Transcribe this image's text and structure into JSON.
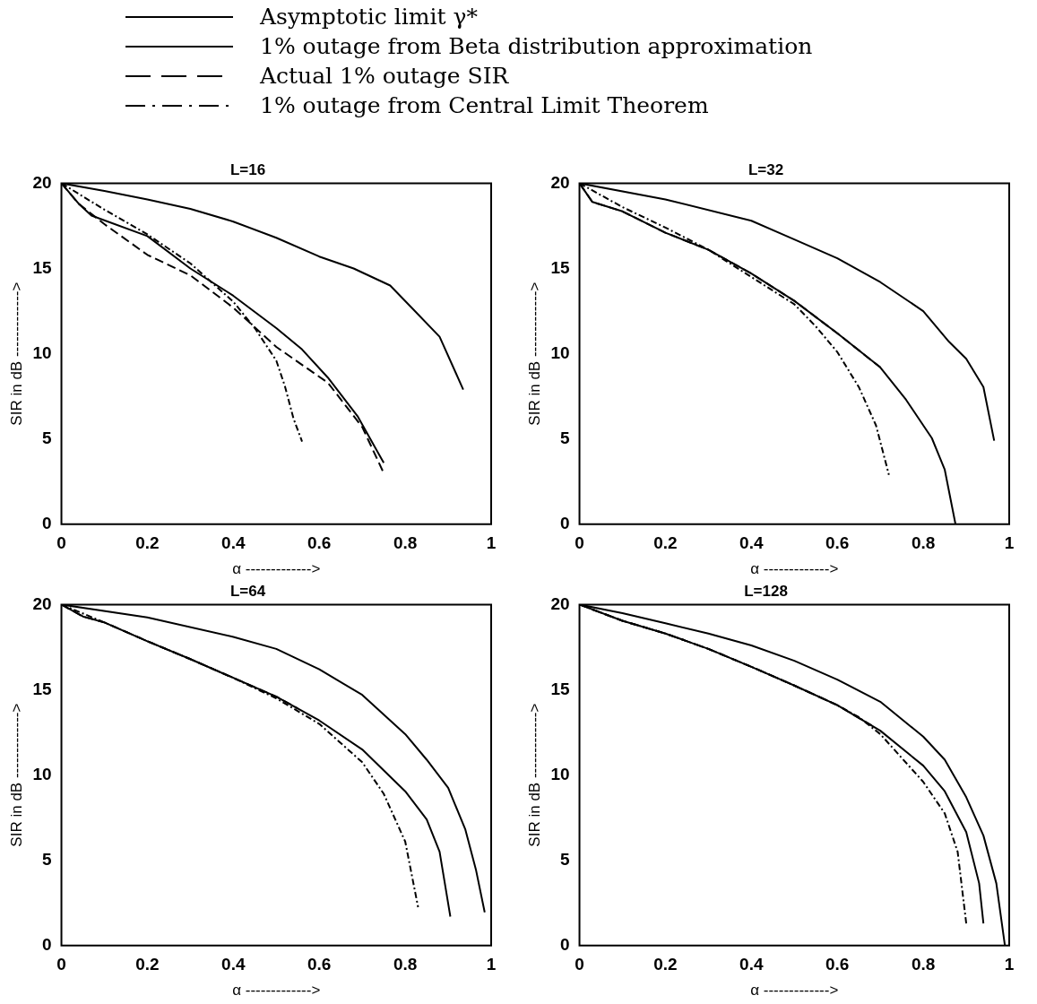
{
  "chart_data": [
    {
      "type": "line",
      "title": "L=16",
      "xlabel": "α ------------->",
      "ylabel": "SIR in dB ------------->",
      "xlim": [
        0,
        1
      ],
      "ylim": [
        0,
        20
      ],
      "xticks": [
        0,
        0.2,
        0.4,
        0.6,
        0.8,
        1
      ],
      "yticks": [
        0,
        5,
        10,
        15,
        20
      ],
      "grid": false,
      "legend": "top",
      "marker": "none",
      "series": [
        {
          "name": "Asymptotic limit γ*",
          "color": "#000000",
          "line_style": "solid",
          "x": [
            0,
            0.1,
            0.2,
            0.3,
            0.4,
            0.5,
            0.6,
            0.68,
            0.765,
            0.815,
            0.88,
            0.935
          ],
          "values": [
            20,
            19.55,
            19.05,
            18.5,
            17.75,
            16.8,
            15.7,
            15,
            14,
            12.7,
            11,
            7.9
          ]
        },
        {
          "name": "1% outage from Beta distribution approximation",
          "color": "#000000",
          "line_style": "solid",
          "x": [
            0,
            0.04,
            0.07,
            0.2,
            0.3,
            0.4,
            0.5,
            0.56,
            0.62,
            0.69,
            0.75
          ],
          "values": [
            20,
            18.8,
            18.1,
            16.9,
            15,
            13.4,
            11.5,
            10.25,
            8.6,
            6.3,
            3.6
          ]
        },
        {
          "name": "Actual 1% outage SIR",
          "color": "#000000",
          "line_style": "dashed",
          "x": [
            0,
            0.04,
            0.1,
            0.2,
            0.3,
            0.4,
            0.5,
            0.62,
            0.7,
            0.75
          ],
          "values": [
            20,
            18.8,
            17.6,
            15.8,
            14.6,
            12.7,
            10.4,
            8.3,
            5.7,
            3
          ]
        },
        {
          "name": "1% outage from Central Limit Theorem",
          "color": "#000000",
          "line_style": "dotted",
          "x": [
            0,
            0.1,
            0.2,
            0.3,
            0.4,
            0.45,
            0.5,
            0.52,
            0.54,
            0.56
          ],
          "values": [
            20,
            18.45,
            17,
            15.3,
            13.05,
            11.5,
            9.6,
            8.1,
            6.2,
            4.85
          ]
        }
      ]
    },
    {
      "type": "line",
      "title": "L=32",
      "xlabel": "α ------------->",
      "ylabel": "SIR in dB ------------->",
      "xlim": [
        0,
        1
      ],
      "ylim": [
        0,
        20
      ],
      "xticks": [
        0,
        0.2,
        0.4,
        0.6,
        0.8,
        1
      ],
      "yticks": [
        0,
        5,
        10,
        15,
        20
      ],
      "grid": false,
      "marker": "none",
      "series": [
        {
          "color": "#000000",
          "line_style": "solid",
          "x": [
            0,
            0.2,
            0.4,
            0.5,
            0.6,
            0.7,
            0.8,
            0.86,
            0.9,
            0.94,
            0.965
          ],
          "values": [
            20,
            19.05,
            17.8,
            16.7,
            15.6,
            14.2,
            12.5,
            10.7,
            9.7,
            8.05,
            4.9
          ]
        },
        {
          "color": "#000000",
          "line_style": "solid",
          "x": [
            0,
            0.03,
            0.1,
            0.2,
            0.3,
            0.4,
            0.5,
            0.6,
            0.7,
            0.76,
            0.82,
            0.85,
            0.875
          ],
          "values": [
            20,
            18.9,
            18.35,
            17.1,
            16.1,
            14.7,
            13.1,
            11.2,
            9.2,
            7.3,
            5.05,
            3.2,
            0
          ]
        },
        {
          "color": "#000000",
          "line_style": "dashed",
          "x": [
            0,
            0.03,
            0.1,
            0.2,
            0.3,
            0.4,
            0.5,
            0.6,
            0.7
          ],
          "values": [
            20,
            18.9,
            18.35,
            17.1,
            16.1,
            14.7,
            13.1,
            11.2,
            9.2
          ]
        },
        {
          "color": "#000000",
          "line_style": "dotted",
          "x": [
            0,
            0.1,
            0.2,
            0.3,
            0.4,
            0.5,
            0.55,
            0.6,
            0.65,
            0.69,
            0.72
          ],
          "values": [
            20,
            18.6,
            17.4,
            16.1,
            14.5,
            12.9,
            11.6,
            10.1,
            8.05,
            5.8,
            2.9
          ]
        }
      ]
    },
    {
      "type": "line",
      "title": "L=64",
      "xlabel": "α ------------->",
      "ylabel": "SIR in dB ------------->",
      "xlim": [
        0,
        1
      ],
      "ylim": [
        0,
        20
      ],
      "xticks": [
        0,
        0.2,
        0.4,
        0.6,
        0.8,
        1
      ],
      "yticks": [
        0,
        5,
        10,
        15,
        20
      ],
      "grid": false,
      "marker": "none",
      "series": [
        {
          "color": "#000000",
          "line_style": "solid",
          "x": [
            0,
            0.2,
            0.4,
            0.5,
            0.6,
            0.7,
            0.8,
            0.85,
            0.9,
            0.94,
            0.965,
            0.985
          ],
          "values": [
            20,
            19.25,
            18.1,
            17.4,
            16.2,
            14.7,
            12.4,
            10.9,
            9.25,
            6.8,
            4.4,
            1.95
          ]
        },
        {
          "color": "#000000",
          "line_style": "solid",
          "x": [
            0,
            0.05,
            0.1,
            0.2,
            0.3,
            0.4,
            0.5,
            0.6,
            0.7,
            0.8,
            0.85,
            0.88,
            0.905
          ],
          "values": [
            20,
            19.3,
            18.95,
            17.85,
            16.8,
            15.7,
            14.6,
            13.2,
            11.5,
            9.05,
            7.4,
            5.5,
            1.7
          ]
        },
        {
          "color": "#000000",
          "line_style": "dashed",
          "x": [
            0,
            0.05,
            0.1,
            0.2,
            0.3,
            0.4,
            0.5,
            0.55
          ],
          "values": [
            20,
            19.3,
            18.95,
            17.85,
            16.8,
            15.7,
            14.6,
            13.9
          ]
        },
        {
          "color": "#000000",
          "line_style": "dotted",
          "x": [
            0,
            0.1,
            0.2,
            0.3,
            0.4,
            0.5,
            0.6,
            0.7,
            0.75,
            0.8,
            0.83
          ],
          "values": [
            20,
            18.95,
            17.85,
            16.8,
            15.7,
            14.5,
            13,
            10.75,
            8.9,
            6.1,
            2.25
          ]
        }
      ]
    },
    {
      "type": "line",
      "title": "L=128",
      "xlabel": "α ------------->",
      "ylabel": "SIR in dB ------------->",
      "xlim": [
        0,
        1
      ],
      "ylim": [
        0,
        20
      ],
      "xticks": [
        0,
        0.2,
        0.4,
        0.6,
        0.8,
        1
      ],
      "yticks": [
        0,
        5,
        10,
        15,
        20
      ],
      "grid": false,
      "marker": "none",
      "series": [
        {
          "color": "#000000",
          "line_style": "solid",
          "x": [
            0,
            0.1,
            0.2,
            0.3,
            0.4,
            0.5,
            0.6,
            0.7,
            0.8,
            0.85,
            0.9,
            0.94,
            0.97,
            0.99
          ],
          "values": [
            20,
            19.5,
            18.9,
            18.3,
            17.6,
            16.7,
            15.6,
            14.3,
            12.25,
            10.9,
            8.7,
            6.45,
            3.65,
            0
          ]
        },
        {
          "color": "#000000",
          "line_style": "solid",
          "x": [
            0,
            0.1,
            0.2,
            0.3,
            0.4,
            0.5,
            0.6,
            0.7,
            0.8,
            0.85,
            0.9,
            0.93,
            0.94
          ],
          "values": [
            20,
            19.05,
            18.3,
            17.4,
            16.35,
            15.25,
            14.1,
            12.6,
            10.55,
            9.05,
            6.65,
            3.65,
            1.3
          ]
        },
        {
          "color": "#000000",
          "line_style": "dashed",
          "x": [
            0,
            0.1,
            0.2,
            0.3,
            0.4,
            0.5,
            0.6,
            0.68
          ],
          "values": [
            20,
            19.05,
            18.3,
            17.4,
            16.35,
            15.25,
            14.1,
            12.9
          ]
        },
        {
          "color": "#000000",
          "line_style": "dotted",
          "x": [
            0,
            0.1,
            0.2,
            0.3,
            0.4,
            0.5,
            0.6,
            0.65,
            0.7,
            0.8,
            0.85,
            0.88,
            0.9
          ],
          "values": [
            20,
            19.05,
            18.3,
            17.4,
            16.35,
            15.25,
            14.1,
            13.4,
            12.4,
            9.6,
            7.75,
            5.5,
            1.3
          ]
        }
      ]
    }
  ]
}
